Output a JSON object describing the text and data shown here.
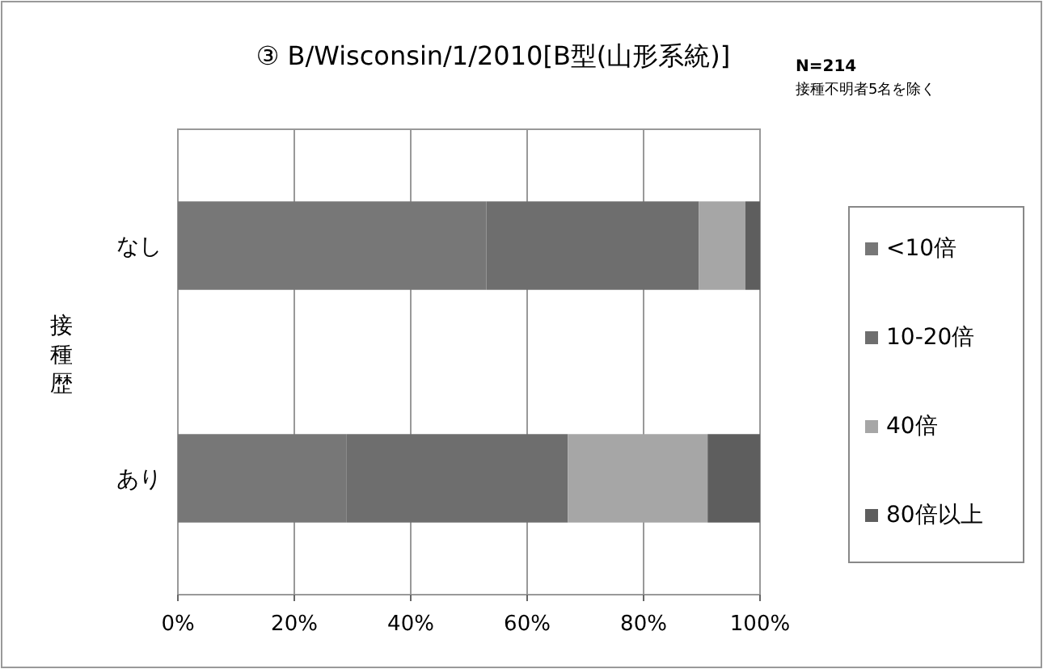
{
  "chart_data": {
    "type": "bar",
    "orientation": "horizontal",
    "stacked": true,
    "title": "③ B/Wisconsin/1/2010[B型(山形系統)]",
    "ylabel": "接種歴",
    "annotations": [
      "N=214",
      "接種不明者5名を除く"
    ],
    "categories": [
      "なし",
      "あり"
    ],
    "series": [
      {
        "name": "<10倍",
        "color": "#777777",
        "values": [
          53,
          29
        ]
      },
      {
        "name": "10-20倍",
        "color": "#6e6e6e",
        "values": [
          36.5,
          38
        ]
      },
      {
        "name": "40倍",
        "color": "#a6a6a6",
        "values": [
          8,
          24
        ]
      },
      {
        "name": "80倍以上",
        "color": "#5e5e5e",
        "values": [
          2.5,
          9
        ]
      }
    ],
    "xlim": [
      0,
      100
    ],
    "xticks": [
      {
        "value": 0,
        "label": "0%"
      },
      {
        "value": 20,
        "label": "20%"
      },
      {
        "value": 40,
        "label": "40%"
      },
      {
        "value": 60,
        "label": "60%"
      },
      {
        "value": 80,
        "label": "80%"
      },
      {
        "value": 100,
        "label": "100%"
      }
    ],
    "grid": "x",
    "legend": "right"
  }
}
